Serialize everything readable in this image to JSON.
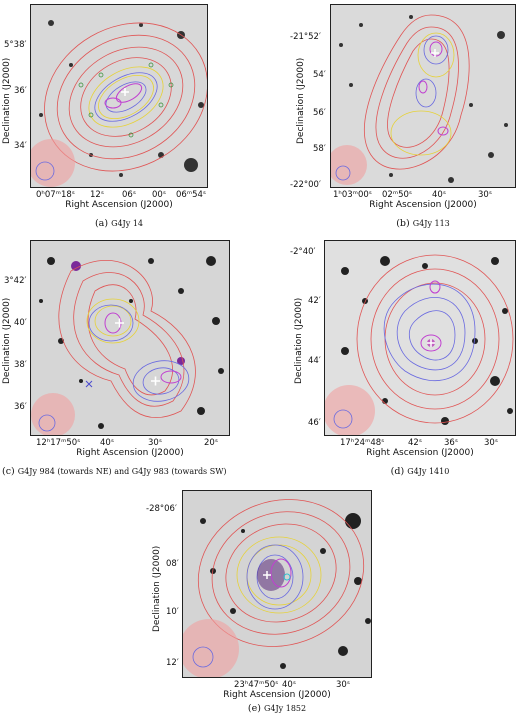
{
  "panels": [
    {
      "id": "a",
      "y_ticks": [
        "5°38′",
        "36′",
        "34′"
      ],
      "x_ticks": [
        "0ʰ07ᵐ18ˢ",
        "12ˢ",
        "06ˢ",
        "00ˢ",
        "06ᵐ54ˢ"
      ],
      "ylabel": "Declination (J2000)",
      "xlabel": "Right Ascension (J2000)",
      "caption_letter": "(a)",
      "caption_text": "G4Jy 14"
    },
    {
      "id": "b",
      "y_ticks": [
        "-21°52′",
        "54′",
        "56′",
        "58′",
        "-22°00′"
      ],
      "x_ticks": [
        "1ʰ03ᵐ00ˢ",
        "02ᵐ50ˢ",
        "40ˢ",
        "30ˢ"
      ],
      "ylabel": "Declination (J2000)",
      "xlabel": "Right Ascension (J2000)",
      "caption_letter": "(b)",
      "caption_text": "G4Jy 113"
    },
    {
      "id": "c",
      "y_ticks": [
        "3°42′",
        "40′",
        "38′",
        "36′"
      ],
      "x_ticks": [
        "12ʰ17ᵐ50ˢ",
        "40ˢ",
        "30ˢ",
        "20ˢ"
      ],
      "ylabel": "Declination (J2000)",
      "xlabel": "Right Ascension (J2000)",
      "caption_letter": "(c)",
      "caption_text": "G4Jy 984 (towards NE) and G4Jy 983 (towards SW)"
    },
    {
      "id": "d",
      "y_ticks": [
        "-2°40′",
        "42′",
        "44′",
        "46′"
      ],
      "x_ticks": [
        "17ʰ24ᵐ48ˢ",
        "42ˢ",
        "36ˢ",
        "30ˢ"
      ],
      "ylabel": "Declination (J2000)",
      "xlabel": "Right Ascension (J2000)",
      "caption_letter": "(d)",
      "caption_text": "G4Jy 1410"
    },
    {
      "id": "e",
      "y_ticks": [
        "-28°06′",
        "08′",
        "10′",
        "12′"
      ],
      "x_ticks": [
        "23ʰ47ᵐ50ˢ",
        "40ˢ",
        "30ˢ"
      ],
      "ylabel": "Declination (J2000)",
      "xlabel": "Right Ascension (J2000)",
      "caption_letter": "(e)",
      "caption_text": "G4Jy 1852"
    }
  ],
  "colors": {
    "red_contour": "#e05555",
    "yellow_contour": "#e6d23a",
    "blue_contour": "#6a6ae0",
    "purple_contour": "#c040d0",
    "green_marker": "#2e8b2e",
    "beam_fill": "#f0a0a0"
  }
}
